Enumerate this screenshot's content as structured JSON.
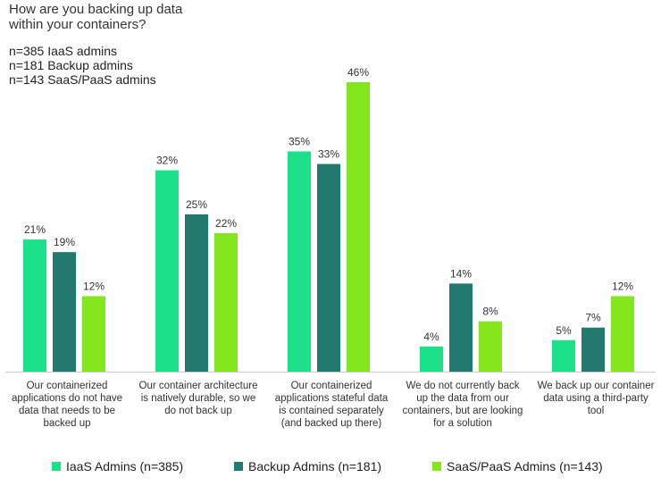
{
  "colors": {
    "iaas": "#1de08a",
    "backup": "#217a6d",
    "saas": "#84e71d",
    "axis": "#c8c8c8",
    "text": "#333333"
  },
  "chart_data": {
    "type": "bar",
    "title": "How are you backing up data within your containers?",
    "notes": [
      "n=385 IaaS admins",
      "n=181 Backup admins",
      "n=143 SaaS/PaaS admins"
    ],
    "categories": [
      "Our containerized applications do not have data that needs to be backed up",
      "Our container architecture is natively durable, so we do not back up",
      "Our containerized applications stateful data is contained separately (and backed up there)",
      "We do not currently back up the data from our containers, but are looking for a solution",
      "We back up our container data using a third-party tool"
    ],
    "series": [
      {
        "name": "IaaS Admins (n=385)",
        "values": [
          21,
          32,
          35,
          4,
          5
        ]
      },
      {
        "name": "Backup Admins (n=181)",
        "values": [
          19,
          25,
          33,
          14,
          7
        ]
      },
      {
        "name": "SaaS/PaaS Admins (n=143)",
        "values": [
          12,
          22,
          46,
          8,
          12
        ]
      }
    ],
    "value_suffix": "%",
    "ylim": [
      0,
      46
    ],
    "grid": false,
    "legend_position": "bottom"
  }
}
